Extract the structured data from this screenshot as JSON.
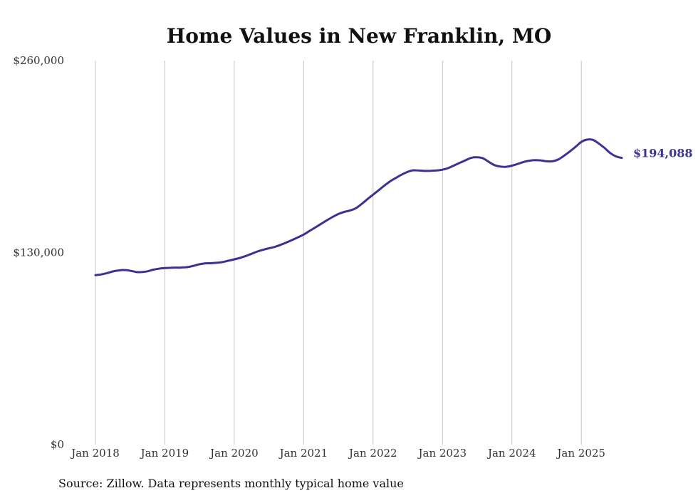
{
  "chart_data": {
    "type": "line",
    "title": "Home Values in New Franklin, MO",
    "source": "Source: Zillow. Data represents monthly typical home value",
    "ylim": [
      0,
      260000
    ],
    "y_ticks": [
      {
        "value": 0,
        "label": "$0"
      },
      {
        "value": 130000,
        "label": "$130,000"
      },
      {
        "value": 260000,
        "label": "$260,000"
      }
    ],
    "x_ticks": [
      {
        "value": 2018.0,
        "label": "Jan 2018"
      },
      {
        "value": 2019.0,
        "label": "Jan 2019"
      },
      {
        "value": 2020.0,
        "label": "Jan 2020"
      },
      {
        "value": 2021.0,
        "label": "Jan 2021"
      },
      {
        "value": 2022.0,
        "label": "Jan 2022"
      },
      {
        "value": 2023.0,
        "label": "Jan 2023"
      },
      {
        "value": 2024.0,
        "label": "Jan 2024"
      },
      {
        "value": 2025.0,
        "label": "Jan 2025"
      }
    ],
    "xlim": [
      2018.0,
      2025.583
    ],
    "grid": "vertical",
    "series": [
      {
        "name": "Typical home value",
        "color": "#3b3391",
        "end_label": "$194,088",
        "points": [
          [
            2018.0,
            114700
          ],
          [
            2018.083,
            115200
          ],
          [
            2018.167,
            116100
          ],
          [
            2018.25,
            117200
          ],
          [
            2018.333,
            117900
          ],
          [
            2018.417,
            118200
          ],
          [
            2018.5,
            117700
          ],
          [
            2018.583,
            116900
          ],
          [
            2018.667,
            116800
          ],
          [
            2018.75,
            117300
          ],
          [
            2018.833,
            118400
          ],
          [
            2018.917,
            119100
          ],
          [
            2019.0,
            119500
          ],
          [
            2019.083,
            119700
          ],
          [
            2019.167,
            119800
          ],
          [
            2019.25,
            119900
          ],
          [
            2019.333,
            120200
          ],
          [
            2019.417,
            121100
          ],
          [
            2019.5,
            122100
          ],
          [
            2019.583,
            122700
          ],
          [
            2019.667,
            122800
          ],
          [
            2019.75,
            123100
          ],
          [
            2019.833,
            123600
          ],
          [
            2019.917,
            124500
          ],
          [
            2020.0,
            125400
          ],
          [
            2020.083,
            126400
          ],
          [
            2020.167,
            127700
          ],
          [
            2020.25,
            129200
          ],
          [
            2020.333,
            130700
          ],
          [
            2020.417,
            131900
          ],
          [
            2020.5,
            132900
          ],
          [
            2020.583,
            133800
          ],
          [
            2020.667,
            135200
          ],
          [
            2020.75,
            136800
          ],
          [
            2020.833,
            138500
          ],
          [
            2020.917,
            140300
          ],
          [
            2021.0,
            142200
          ],
          [
            2021.083,
            144600
          ],
          [
            2021.167,
            147000
          ],
          [
            2021.25,
            149400
          ],
          [
            2021.333,
            151800
          ],
          [
            2021.417,
            154100
          ],
          [
            2021.5,
            156100
          ],
          [
            2021.583,
            157500
          ],
          [
            2021.667,
            158500
          ],
          [
            2021.75,
            160000
          ],
          [
            2021.833,
            162800
          ],
          [
            2021.917,
            166100
          ],
          [
            2022.0,
            169200
          ],
          [
            2022.083,
            172300
          ],
          [
            2022.167,
            175500
          ],
          [
            2022.25,
            178400
          ],
          [
            2022.333,
            180700
          ],
          [
            2022.417,
            182900
          ],
          [
            2022.5,
            184700
          ],
          [
            2022.583,
            185700
          ],
          [
            2022.667,
            185500
          ],
          [
            2022.75,
            185300
          ],
          [
            2022.833,
            185400
          ],
          [
            2022.917,
            185600
          ],
          [
            2023.0,
            186100
          ],
          [
            2023.083,
            187200
          ],
          [
            2023.167,
            189000
          ],
          [
            2023.25,
            190800
          ],
          [
            2023.333,
            192500
          ],
          [
            2023.417,
            194200
          ],
          [
            2023.5,
            194500
          ],
          [
            2023.583,
            193800
          ],
          [
            2023.667,
            191400
          ],
          [
            2023.75,
            189200
          ],
          [
            2023.833,
            188200
          ],
          [
            2023.917,
            188100
          ],
          [
            2024.0,
            188800
          ],
          [
            2024.083,
            190000
          ],
          [
            2024.167,
            191300
          ],
          [
            2024.25,
            192200
          ],
          [
            2024.333,
            192600
          ],
          [
            2024.417,
            192400
          ],
          [
            2024.5,
            191800
          ],
          [
            2024.583,
            191800
          ],
          [
            2024.667,
            193000
          ],
          [
            2024.75,
            195500
          ],
          [
            2024.833,
            198400
          ],
          [
            2024.917,
            201600
          ],
          [
            2025.0,
            204900
          ],
          [
            2025.083,
            206500
          ],
          [
            2025.167,
            206300
          ],
          [
            2025.25,
            203900
          ],
          [
            2025.333,
            200900
          ],
          [
            2025.417,
            197400
          ],
          [
            2025.5,
            195100
          ],
          [
            2025.583,
            194088
          ]
        ]
      }
    ]
  }
}
